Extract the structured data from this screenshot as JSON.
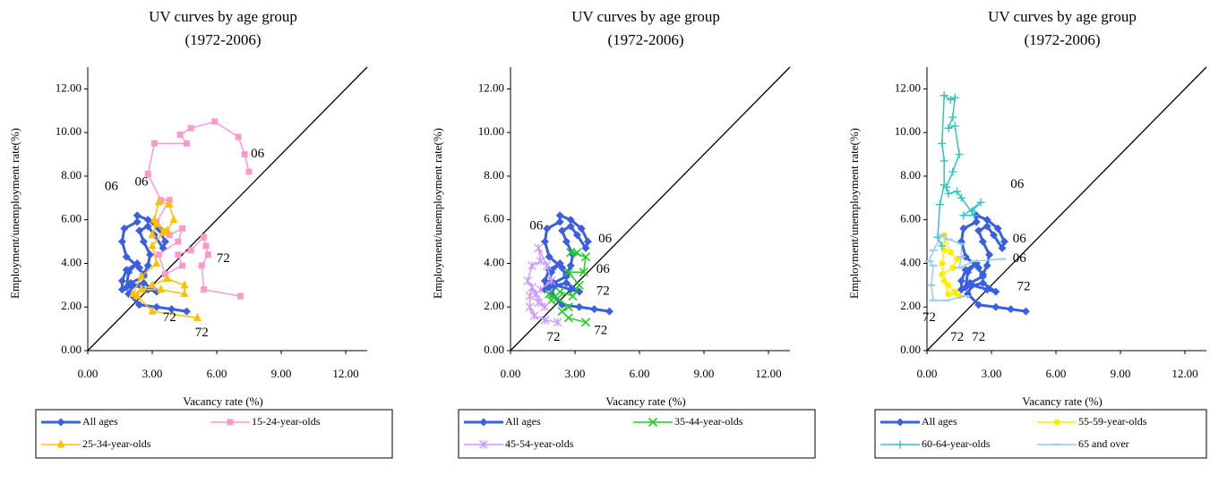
{
  "chart_data": [
    {
      "type": "line",
      "title": "UV curves by age group",
      "subtitle": "(1972-2006)",
      "x_label": "Vacancy rate (%)",
      "y_label": "Employment/unemployment rate(%)",
      "xlim": [
        0,
        13
      ],
      "ylim": [
        0,
        13
      ],
      "xticks": [
        {
          "value": 0,
          "label": "0.00"
        },
        {
          "value": 3,
          "label": "3.00"
        },
        {
          "value": 6,
          "label": "6.00"
        },
        {
          "value": 9,
          "label": "9.00"
        },
        {
          "value": 12,
          "label": "12.00"
        }
      ],
      "yticks": [
        {
          "value": 0,
          "label": "0.00"
        },
        {
          "value": 2,
          "label": "2.00"
        },
        {
          "value": 4,
          "label": "4.00"
        },
        {
          "value": 6,
          "label": "6.00"
        },
        {
          "value": 8,
          "label": "8.00"
        },
        {
          "value": 10,
          "label": "10.00"
        },
        {
          "value": 12,
          "label": "12.00"
        }
      ],
      "diagonal": true,
      "series": [
        {
          "name": "All ages",
          "color": "#3a5fe0",
          "marker": "diamond",
          "x": [
            4.6,
            3.9,
            3.2,
            2.4,
            1.9,
            2.1,
            2.8,
            3.2,
            2.6,
            1.8,
            1.9,
            2.3,
            1.8,
            1.6,
            1.6,
            2.0,
            2.6,
            2.4,
            1.8,
            1.6,
            1.7,
            2.3,
            2.3,
            2.8,
            3.3,
            3.6,
            3.5,
            3.1,
            2.8,
            2.4,
            2.6,
            2.9,
            2.8,
            2.6
          ],
          "values": [
            1.8,
            1.9,
            2.0,
            2.1,
            2.6,
            3.0,
            2.8,
            2.7,
            3.1,
            2.9,
            3.6,
            4.0,
            3.7,
            3.2,
            2.8,
            3.1,
            3.4,
            3.8,
            4.3,
            5.0,
            5.6,
            5.9,
            6.2,
            6.0,
            5.6,
            5.0,
            4.7,
            5.3,
            5.7,
            5.5,
            5.0,
            4.4,
            3.9,
            3.5
          ]
        },
        {
          "name": "15-24-year-olds",
          "color": "#ff99cc",
          "marker": "square",
          "x": [
            7.1,
            5.4,
            5.3,
            5.6,
            5.5,
            5.4,
            4.8,
            4.2,
            4.4,
            3.6,
            3.3,
            4.2,
            4.4,
            3.8,
            3.2,
            3.8,
            3.4,
            2.8,
            3.1,
            4.6,
            4.3,
            4.8,
            5.9,
            7.0,
            7.3,
            7.5
          ],
          "values": [
            2.5,
            2.8,
            3.9,
            4.4,
            4.8,
            5.2,
            4.6,
            4.4,
            3.9,
            3.5,
            4.4,
            5.0,
            5.6,
            5.3,
            5.9,
            6.9,
            6.9,
            8.1,
            9.5,
            9.5,
            9.9,
            10.2,
            10.5,
            9.8,
            9.0,
            8.2
          ]
        },
        {
          "name": "25-34-year-olds",
          "color": "#ffc000",
          "marker": "triangle",
          "x": [
            5.1,
            3.0,
            2.3,
            2.5,
            3.4,
            4.5,
            4.5,
            3.7,
            3.0,
            2.1,
            2.5,
            3.2,
            3.0,
            3.5,
            3.1,
            3.3,
            3.8,
            4.0,
            3.7,
            3.2,
            3.0
          ],
          "values": [
            1.5,
            1.8,
            2.5,
            2.8,
            2.8,
            2.6,
            3.0,
            3.3,
            3.0,
            2.6,
            3.4,
            4.0,
            4.8,
            5.4,
            6.0,
            6.8,
            6.7,
            6.0,
            5.5,
            5.8,
            5.3
          ]
        }
      ],
      "annotations": [
        {
          "text": "06",
          "x": 7.9,
          "y": 9.0
        },
        {
          "text": "06",
          "x": 1.1,
          "y": 7.5
        },
        {
          "text": "06",
          "x": 2.5,
          "y": 7.7
        },
        {
          "text": "72",
          "x": 3.8,
          "y": 1.5
        },
        {
          "text": "72",
          "x": 5.3,
          "y": 0.8
        },
        {
          "text": "72",
          "x": 6.3,
          "y": 4.2
        }
      ]
    },
    {
      "type": "line",
      "title": "UV curves by age group",
      "subtitle": "(1972-2006)",
      "x_label": "Vacancy rate (%)",
      "y_label": "Employment/unemployment rate(%)",
      "xlim": [
        0,
        13
      ],
      "ylim": [
        0,
        13
      ],
      "xticks": [
        {
          "value": 0,
          "label": "0.00"
        },
        {
          "value": 3,
          "label": "3.00"
        },
        {
          "value": 6,
          "label": "6.00"
        },
        {
          "value": 9,
          "label": "9.00"
        },
        {
          "value": 12,
          "label": "12.00"
        }
      ],
      "yticks": [
        {
          "value": 0,
          "label": "0.00"
        },
        {
          "value": 2,
          "label": "2.00"
        },
        {
          "value": 4,
          "label": "4.00"
        },
        {
          "value": 6,
          "label": "6.00"
        },
        {
          "value": 8,
          "label": "8.00"
        },
        {
          "value": 10,
          "label": "10.00"
        },
        {
          "value": 12,
          "label": "12.00"
        }
      ],
      "diagonal": true,
      "series": [
        {
          "name": "All ages",
          "color": "#3a5fe0",
          "marker": "diamond",
          "x": [
            4.6,
            3.9,
            3.2,
            2.4,
            1.9,
            2.1,
            2.8,
            3.2,
            2.6,
            1.8,
            1.9,
            2.3,
            1.8,
            1.6,
            1.6,
            2.0,
            2.6,
            2.4,
            1.8,
            1.6,
            1.7,
            2.3,
            2.3,
            2.8,
            3.3,
            3.6,
            3.5,
            3.1,
            2.8,
            2.4,
            2.6,
            2.9,
            2.8,
            2.6
          ],
          "values": [
            1.8,
            1.9,
            2.0,
            2.1,
            2.6,
            3.0,
            2.8,
            2.7,
            3.1,
            2.9,
            3.6,
            4.0,
            3.7,
            3.2,
            2.8,
            3.1,
            3.4,
            3.8,
            4.3,
            5.0,
            5.6,
            5.9,
            6.2,
            6.0,
            5.6,
            5.0,
            4.7,
            5.3,
            5.7,
            5.5,
            5.0,
            4.4,
            3.9,
            3.5
          ]
        },
        {
          "name": "35-44-year-olds",
          "color": "#22cc22",
          "marker": "x",
          "x": [
            3.5,
            2.7,
            2.4,
            2.7,
            2.2,
            1.8,
            1.9,
            2.3,
            2.9,
            3.2,
            2.7,
            3.4,
            3.5,
            2.8,
            3.1
          ],
          "values": [
            1.3,
            1.5,
            1.8,
            2.0,
            2.4,
            2.6,
            2.3,
            2.7,
            2.5,
            3.0,
            3.6,
            3.6,
            4.3,
            4.5,
            4.5
          ]
        },
        {
          "name": "45-54-year-olds",
          "color": "#cc99ff",
          "marker": "asterisk",
          "x": [
            2.2,
            1.6,
            1.1,
            0.9,
            0.9,
            1.0,
            1.3,
            1.6,
            1.2,
            0.8,
            1.0,
            1.4,
            1.3,
            1.7,
            1.9,
            1.4
          ],
          "values": [
            1.3,
            1.4,
            1.6,
            2.0,
            2.5,
            2.9,
            2.2,
            2.0,
            2.6,
            3.2,
            3.9,
            4.1,
            4.7,
            3.9,
            3.2,
            2.8
          ]
        }
      ],
      "annotations": [
        {
          "text": "06",
          "x": 1.2,
          "y": 5.7
        },
        {
          "text": "06",
          "x": 4.4,
          "y": 5.1
        },
        {
          "text": "06",
          "x": 4.3,
          "y": 3.7
        },
        {
          "text": "72",
          "x": 4.3,
          "y": 2.7
        },
        {
          "text": "72",
          "x": 2.0,
          "y": 0.6
        },
        {
          "text": "72",
          "x": 4.2,
          "y": 0.9
        }
      ]
    },
    {
      "type": "line",
      "title": "UV curves by age group",
      "subtitle": "(1972-2006)",
      "x_label": "Vacancy rate (%)",
      "y_label": "Employment/unemployment rate(%)",
      "xlim": [
        0,
        13
      ],
      "ylim": [
        0,
        13
      ],
      "xticks": [
        {
          "value": 0,
          "label": "0.00"
        },
        {
          "value": 3,
          "label": "3.00"
        },
        {
          "value": 6,
          "label": "6.00"
        },
        {
          "value": 9,
          "label": "9.00"
        },
        {
          "value": 12,
          "label": "12.00"
        }
      ],
      "yticks": [
        {
          "value": 0,
          "label": "0.00"
        },
        {
          "value": 2,
          "label": "2.00"
        },
        {
          "value": 4,
          "label": "4.00"
        },
        {
          "value": 6,
          "label": "6.00"
        },
        {
          "value": 8,
          "label": "8.00"
        },
        {
          "value": 10,
          "label": "10.00"
        },
        {
          "value": 12,
          "label": "12.00"
        }
      ],
      "diagonal": true,
      "series": [
        {
          "name": "All ages",
          "color": "#3a5fe0",
          "marker": "diamond",
          "x": [
            4.6,
            3.9,
            3.2,
            2.4,
            1.9,
            2.1,
            2.8,
            3.2,
            2.6,
            1.8,
            1.9,
            2.3,
            1.8,
            1.6,
            1.6,
            2.0,
            2.6,
            2.4,
            1.8,
            1.6,
            1.7,
            2.3,
            2.3,
            2.8,
            3.3,
            3.6,
            3.5,
            3.1,
            2.8,
            2.4,
            2.6,
            2.9,
            2.8,
            2.6
          ],
          "values": [
            1.8,
            1.9,
            2.0,
            2.1,
            2.6,
            3.0,
            2.8,
            2.7,
            3.1,
            2.9,
            3.6,
            4.0,
            3.7,
            3.2,
            2.8,
            3.1,
            3.4,
            3.8,
            4.3,
            5.0,
            5.6,
            5.9,
            6.2,
            6.0,
            5.6,
            5.0,
            4.7,
            5.3,
            5.7,
            5.5,
            5.0,
            4.4,
            3.9,
            3.5
          ]
        },
        {
          "name": "55-59-year-olds",
          "color": "#ffee00",
          "marker": "circle",
          "x": [
            1.5,
            1.0,
            0.8,
            0.7,
            0.8,
            0.8,
            1.1,
            1.4,
            1.2,
            0.7,
            1.0,
            1.3
          ],
          "values": [
            2.5,
            2.6,
            3.2,
            4.0,
            4.6,
            5.3,
            4.5,
            4.2,
            3.8,
            3.5,
            3.0,
            2.7
          ]
        },
        {
          "name": "60-64-year-olds",
          "color": "#33c4c4",
          "marker": "plus",
          "x": [
            0.7,
            0.5,
            0.6,
            0.8,
            0.8,
            0.7,
            0.8,
            1.1,
            1.3,
            1.2,
            1.0,
            1.3,
            1.5,
            1.2,
            0.9,
            1.0,
            1.4,
            1.6,
            2.2,
            1.7,
            2.5,
            2.1
          ],
          "values": [
            4.8,
            5.2,
            6.7,
            7.6,
            8.7,
            9.5,
            11.7,
            11.5,
            11.6,
            10.7,
            10.2,
            10.3,
            9.0,
            8.2,
            7.5,
            7.2,
            7.3,
            7.0,
            6.2,
            6.2,
            6.8,
            6.4
          ]
        },
        {
          "name": "65 and over",
          "color": "#99ccee",
          "marker": "dash",
          "x": [
            1.8,
            0.9,
            0.3,
            0.2,
            0.3,
            0.1,
            0.3,
            0.7,
            1.0,
            1.6,
            1.6,
            1.5,
            2.2,
            3.5
          ],
          "values": [
            2.5,
            2.3,
            2.3,
            3.0,
            3.9,
            4.1,
            4.6,
            5.3,
            5.1,
            4.9,
            4.3,
            3.8,
            4.1,
            4.2
          ]
        }
      ],
      "annotations": [
        {
          "text": "06",
          "x": 4.2,
          "y": 7.6
        },
        {
          "text": "06",
          "x": 4.3,
          "y": 5.1
        },
        {
          "text": "06",
          "x": 4.3,
          "y": 4.2
        },
        {
          "text": "72",
          "x": 4.5,
          "y": 2.9
        },
        {
          "text": "72",
          "x": 0.1,
          "y": 1.5
        },
        {
          "text": "72",
          "x": 1.4,
          "y": 0.6
        },
        {
          "text": "72",
          "x": 2.4,
          "y": 0.6
        }
      ]
    }
  ]
}
